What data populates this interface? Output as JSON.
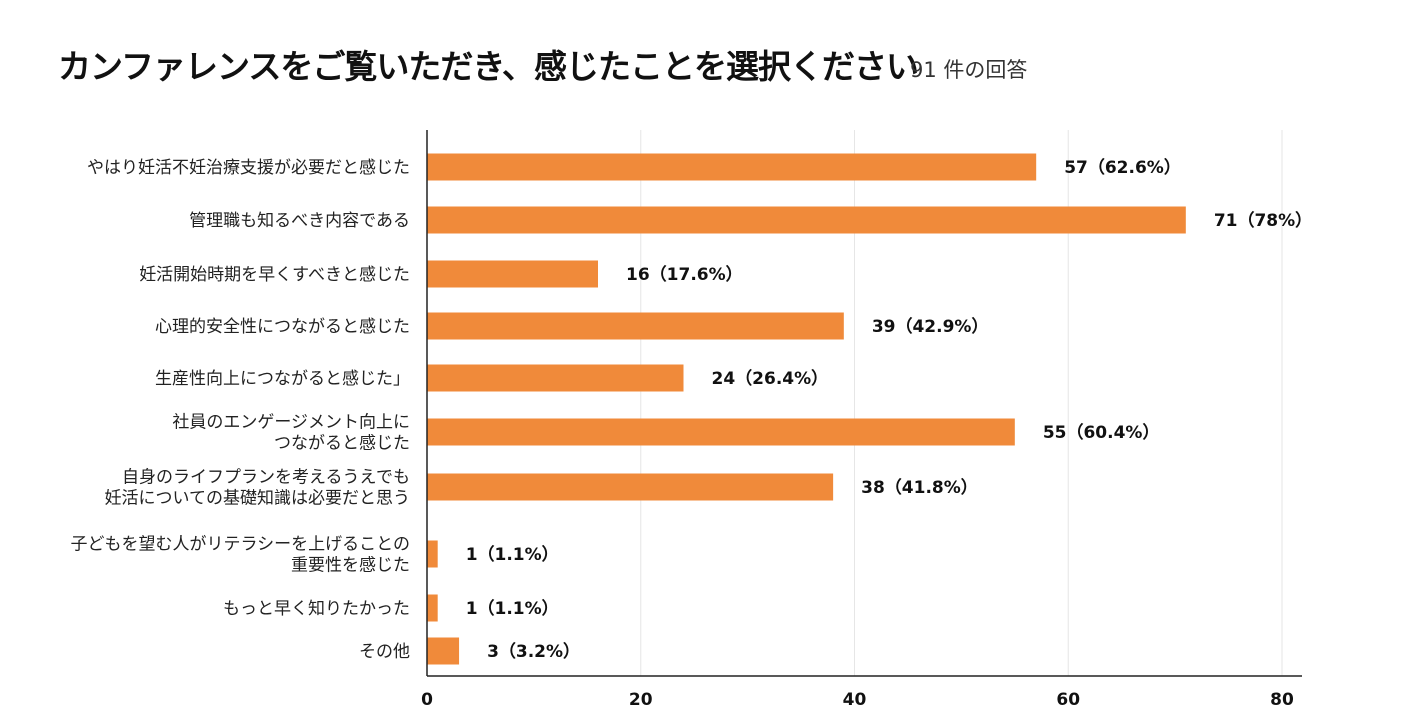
{
  "chart_data": {
    "type": "bar",
    "orientation": "horizontal",
    "title": "カンファレンスをご覧いただき、感じたことを選択ください",
    "subtitle": "91 件の回答",
    "bar_color": "#F08A3A",
    "categories": [
      [
        "やはり妊活不妊治療支援が必要だと感じた"
      ],
      [
        "管理職も知るべき内容である"
      ],
      [
        "妊活開始時期を早くすべきと感じた"
      ],
      [
        "心理的安全性につながると感じた"
      ],
      [
        "生産性向上につながると感じた」"
      ],
      [
        "社員のエンゲージメント向上に",
        "つながると感じた"
      ],
      [
        "自身のライフプランを考えるうえでも",
        "妊活についての基礎知識は必要だと思う"
      ],
      [
        "子どもを望む人がリテラシーを上げることの",
        "重要性を感じた"
      ],
      [
        "もっと早く知りたかった"
      ],
      [
        "その他"
      ]
    ],
    "values": [
      57,
      71,
      16,
      39,
      24,
      55,
      38,
      1,
      1,
      3
    ],
    "value_labels": [
      "57（62.6%）",
      "71（78%）",
      "16（17.6%）",
      "39（42.9%）",
      "24（26.4%）",
      "55（60.4%）",
      "38（41.8%）",
      "1（1.1%）",
      "1（1.1%）",
      "3（3.2%）"
    ],
    "xlim": [
      0,
      80
    ],
    "xticks": [
      0,
      20,
      40,
      60,
      80
    ],
    "grid": true
  }
}
